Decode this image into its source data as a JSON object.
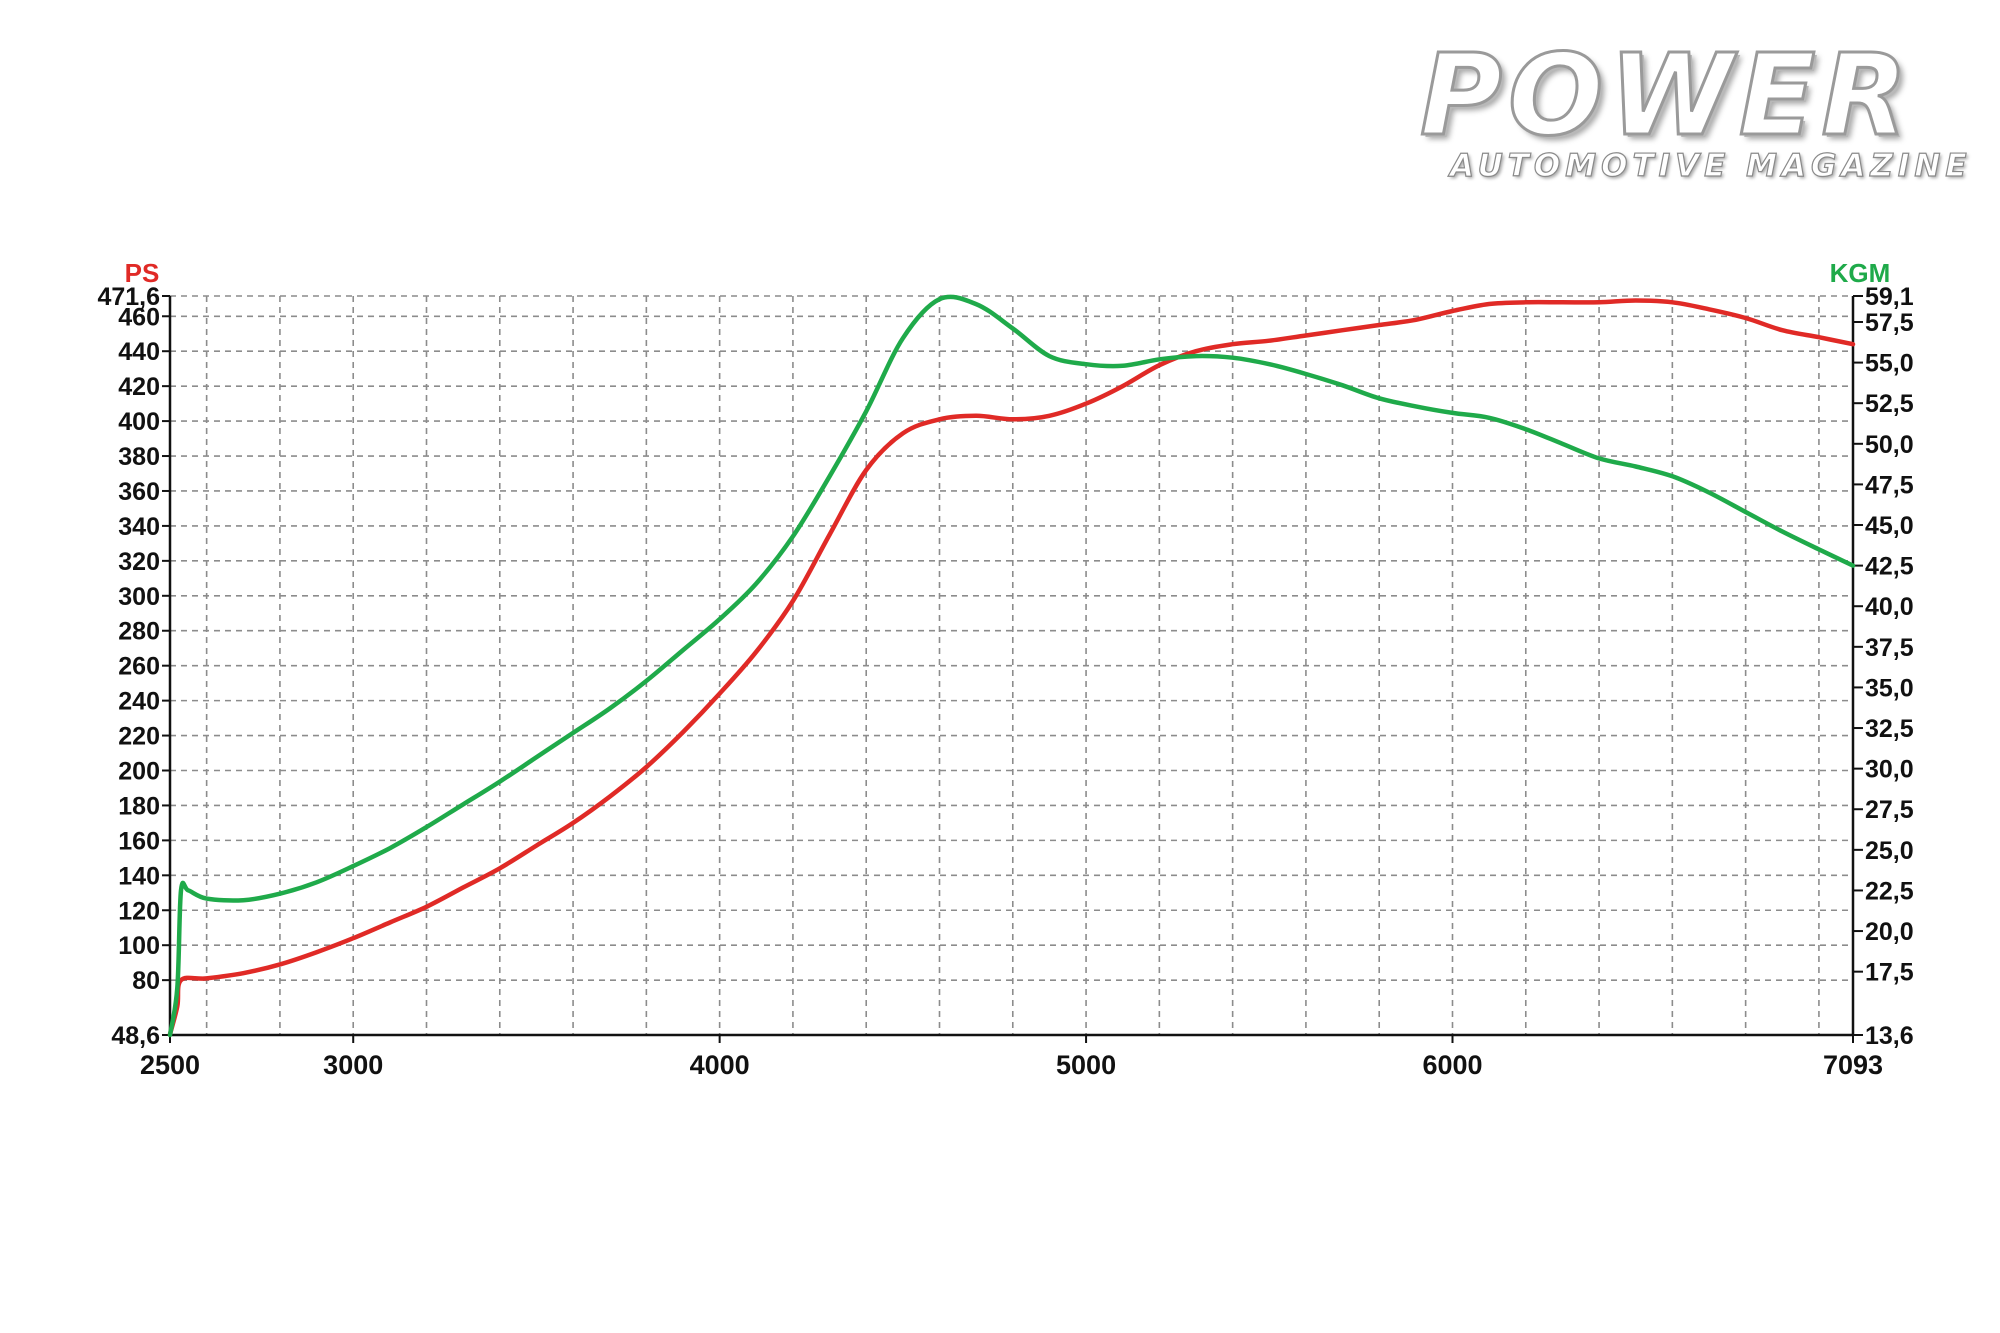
{
  "logo": {
    "title": "POWER",
    "subtitle": "AUTOMOTIVE MAGAZINE"
  },
  "colors": {
    "power": "#e02a26",
    "torque": "#1faa4a",
    "grid": "#8c8c8c",
    "axis": "#111111"
  },
  "chart_data": {
    "type": "line",
    "title": "",
    "xlabel": "",
    "left_axis_label": "PS",
    "right_axis_label": "KGM",
    "xlim": [
      2500,
      7093
    ],
    "ylim_left": [
      48.6,
      471.6
    ],
    "ylim_right": [
      13.6,
      59.1
    ],
    "x_ticks": [
      "2500",
      "3000",
      "4000",
      "5000",
      "6000",
      "7093"
    ],
    "x_tick_values": [
      2500,
      3000,
      4000,
      5000,
      6000,
      7093
    ],
    "left_ticks": [
      "471,6",
      "460",
      "440",
      "420",
      "400",
      "380",
      "360",
      "340",
      "320",
      "300",
      "280",
      "260",
      "240",
      "220",
      "200",
      "180",
      "160",
      "140",
      "120",
      "100",
      "80",
      "48,6"
    ],
    "left_tick_values": [
      471.6,
      460,
      440,
      420,
      400,
      380,
      360,
      340,
      320,
      300,
      280,
      260,
      240,
      220,
      200,
      180,
      160,
      140,
      120,
      100,
      80,
      48.6
    ],
    "right_ticks": [
      "59,1",
      "57,5",
      "55,0",
      "52,5",
      "50,0",
      "47,5",
      "45,0",
      "42,5",
      "40,0",
      "37,5",
      "35,0",
      "32,5",
      "30,0",
      "27,5",
      "25,0",
      "22,5",
      "20,0",
      "17,5",
      "13,6"
    ],
    "right_tick_values": [
      59.1,
      57.5,
      55.0,
      52.5,
      50.0,
      47.5,
      45.0,
      42.5,
      40.0,
      37.5,
      35.0,
      32.5,
      30.0,
      27.5,
      25.0,
      22.5,
      20.0,
      17.5,
      13.6
    ],
    "series": [
      {
        "name": "PS",
        "axis": "left",
        "points": [
          [
            2500,
            49
          ],
          [
            2520,
            65
          ],
          [
            2530,
            80
          ],
          [
            2600,
            81
          ],
          [
            2700,
            84
          ],
          [
            2800,
            89
          ],
          [
            2900,
            96
          ],
          [
            3000,
            104
          ],
          [
            3100,
            113
          ],
          [
            3200,
            122
          ],
          [
            3300,
            133
          ],
          [
            3400,
            144
          ],
          [
            3500,
            157
          ],
          [
            3600,
            170
          ],
          [
            3700,
            185
          ],
          [
            3800,
            202
          ],
          [
            3900,
            222
          ],
          [
            4000,
            244
          ],
          [
            4100,
            268
          ],
          [
            4200,
            297
          ],
          [
            4300,
            335
          ],
          [
            4400,
            372
          ],
          [
            4500,
            393
          ],
          [
            4600,
            401
          ],
          [
            4700,
            403
          ],
          [
            4800,
            401
          ],
          [
            4900,
            403
          ],
          [
            5000,
            410
          ],
          [
            5100,
            420
          ],
          [
            5200,
            432
          ],
          [
            5300,
            440
          ],
          [
            5400,
            444
          ],
          [
            5500,
            446
          ],
          [
            5600,
            449
          ],
          [
            5700,
            452
          ],
          [
            5800,
            455
          ],
          [
            5900,
            458
          ],
          [
            6000,
            463
          ],
          [
            6100,
            467
          ],
          [
            6200,
            468
          ],
          [
            6300,
            468
          ],
          [
            6400,
            468
          ],
          [
            6500,
            469
          ],
          [
            6600,
            468
          ],
          [
            6700,
            464
          ],
          [
            6800,
            459
          ],
          [
            6900,
            452
          ],
          [
            7000,
            448
          ],
          [
            7093,
            444
          ]
        ]
      },
      {
        "name": "KGM",
        "axis": "right",
        "points": [
          [
            2500,
            13.6
          ],
          [
            2520,
            16.5
          ],
          [
            2530,
            22.5
          ],
          [
            2550,
            22.5
          ],
          [
            2600,
            22.0
          ],
          [
            2700,
            21.9
          ],
          [
            2800,
            22.3
          ],
          [
            2900,
            23.0
          ],
          [
            3000,
            24.0
          ],
          [
            3100,
            25.1
          ],
          [
            3200,
            26.4
          ],
          [
            3300,
            27.8
          ],
          [
            3400,
            29.2
          ],
          [
            3500,
            30.7
          ],
          [
            3600,
            32.2
          ],
          [
            3700,
            33.7
          ],
          [
            3800,
            35.4
          ],
          [
            3900,
            37.3
          ],
          [
            4000,
            39.2
          ],
          [
            4100,
            41.4
          ],
          [
            4200,
            44.3
          ],
          [
            4300,
            48.0
          ],
          [
            4400,
            52.0
          ],
          [
            4500,
            56.5
          ],
          [
            4600,
            58.9
          ],
          [
            4700,
            58.6
          ],
          [
            4800,
            57.1
          ],
          [
            4900,
            55.4
          ],
          [
            5000,
            54.9
          ],
          [
            5100,
            54.8
          ],
          [
            5200,
            55.2
          ],
          [
            5300,
            55.4
          ],
          [
            5400,
            55.3
          ],
          [
            5500,
            54.9
          ],
          [
            5600,
            54.3
          ],
          [
            5700,
            53.6
          ],
          [
            5800,
            52.8
          ],
          [
            5900,
            52.3
          ],
          [
            6000,
            51.9
          ],
          [
            6100,
            51.6
          ],
          [
            6200,
            50.9
          ],
          [
            6300,
            50.0
          ],
          [
            6400,
            49.1
          ],
          [
            6500,
            48.6
          ],
          [
            6600,
            48.0
          ],
          [
            6700,
            47.0
          ],
          [
            6800,
            45.8
          ],
          [
            6900,
            44.6
          ],
          [
            7000,
            43.5
          ],
          [
            7093,
            42.5
          ]
        ]
      }
    ]
  }
}
